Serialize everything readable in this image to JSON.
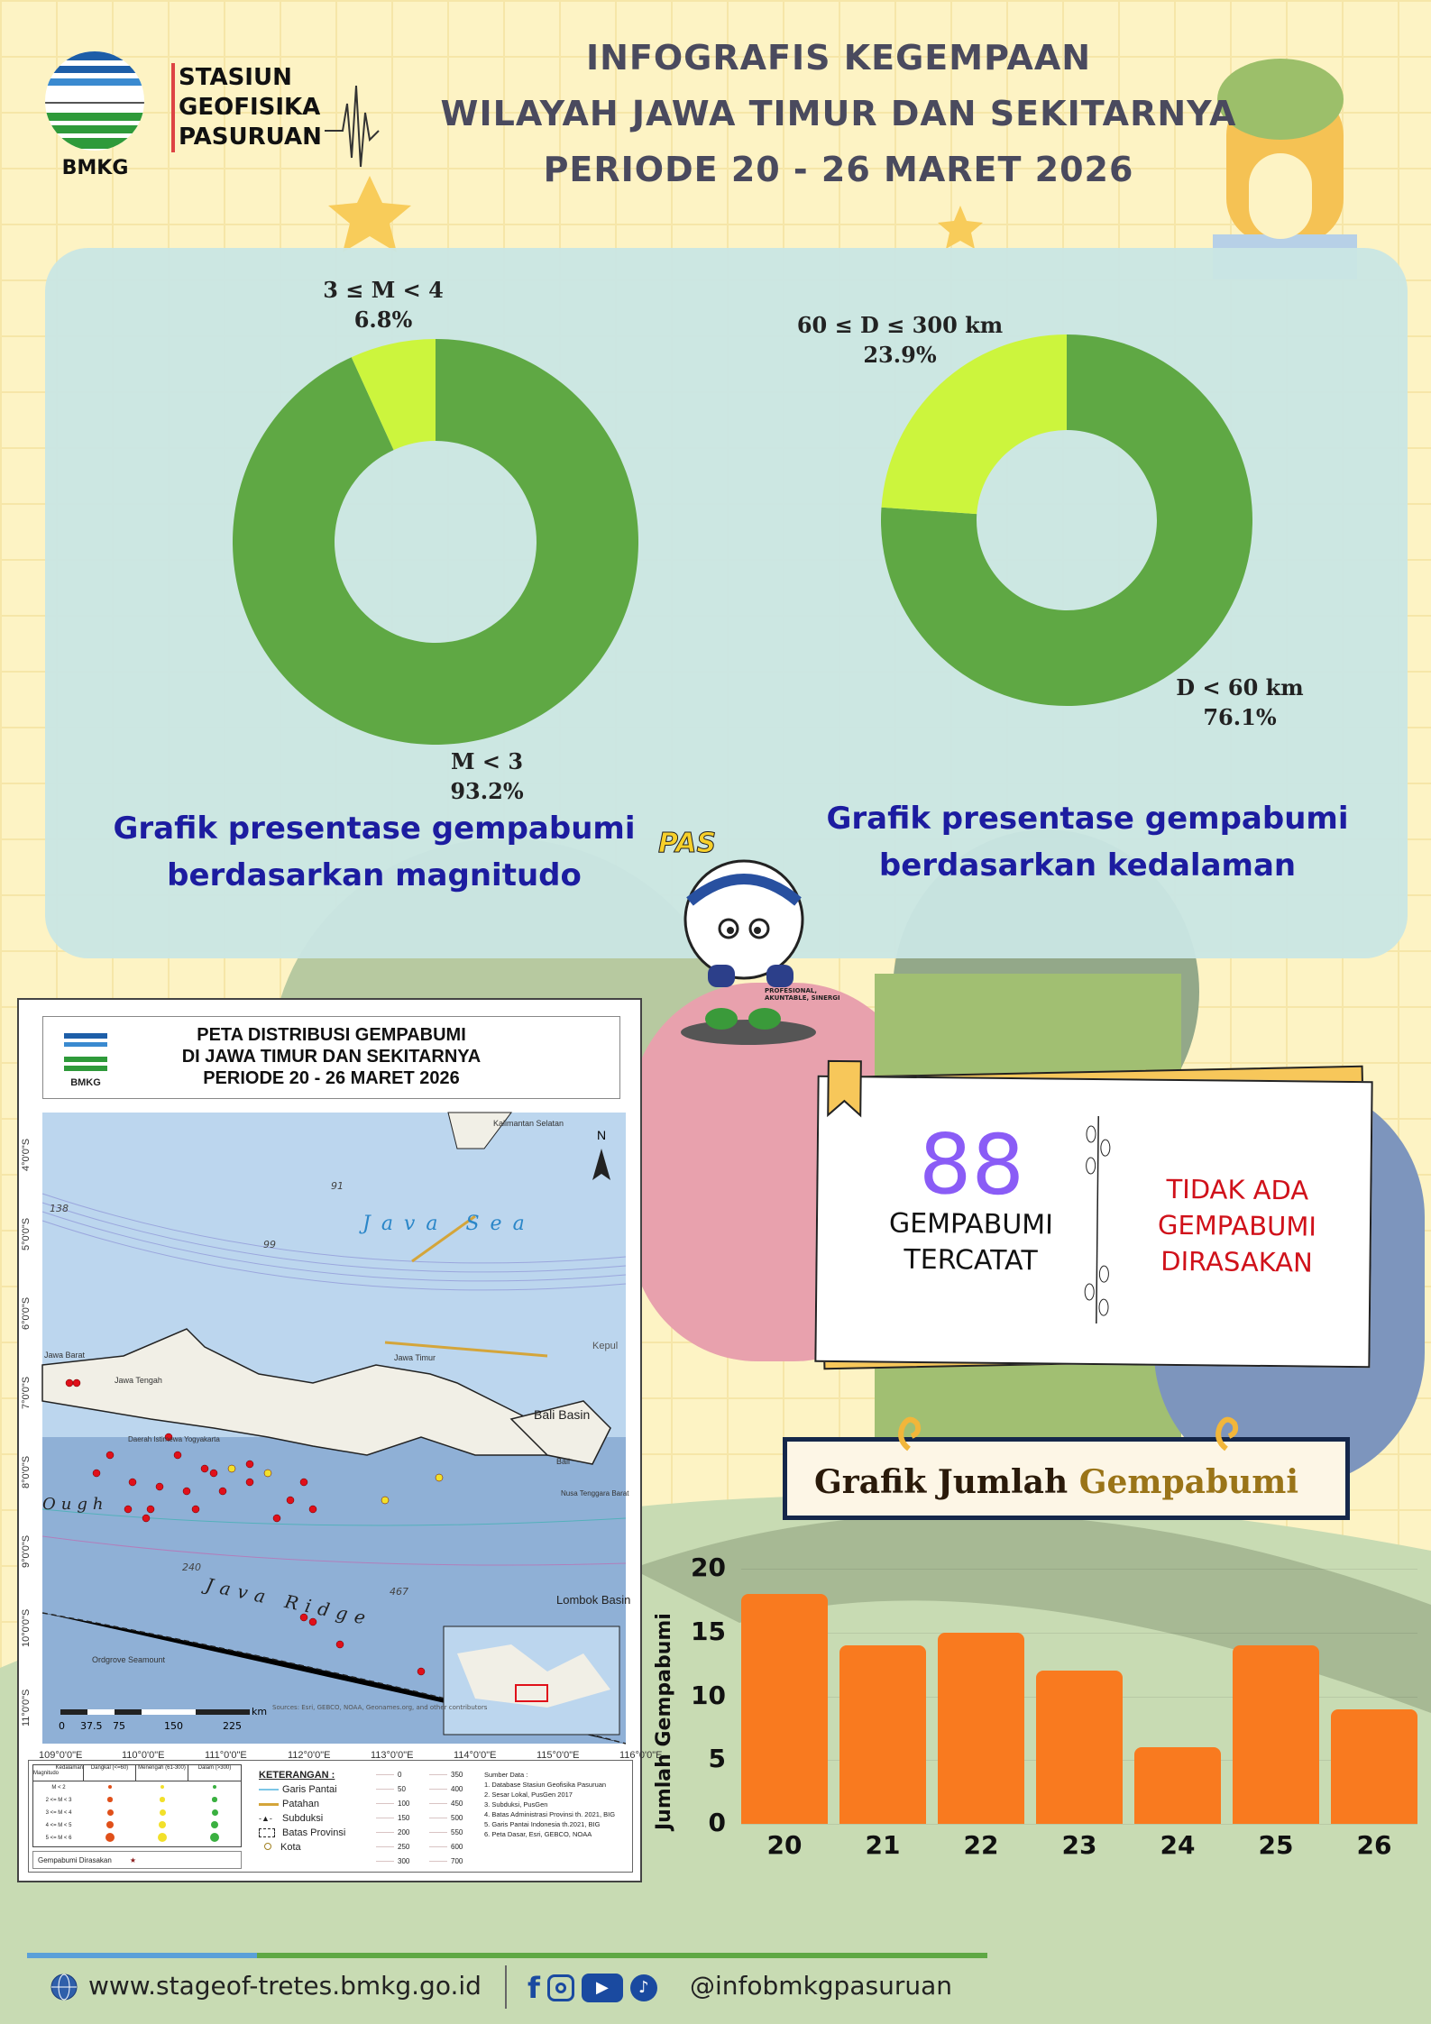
{
  "brand": {
    "logo_text": "BMKG",
    "station_lines": [
      "STASIUN",
      "GEOFISIKA",
      "PASURUAN"
    ]
  },
  "header": {
    "title_lines": [
      "INFOGRAFIS KEGEMPAAN",
      "WILAYAH JAWA TIMUR DAN SEKITARNYA",
      "PERIODE 20 - 26 MARET 2026"
    ]
  },
  "colors": {
    "major": "#5fa844",
    "minor": "#ccf53d",
    "bars": "#f97a1f",
    "caption": "#1c1ca0",
    "count": "#8a5cf6",
    "felt": "#d0111a"
  },
  "chart_data": [
    {
      "type": "pie",
      "title": "Grafik presentase gempabumi berdasarkan magnitudo",
      "slices": [
        {
          "label": "M < 3",
          "value": 93.2,
          "display": "93.2%"
        },
        {
          "label": "3 ≤ M < 4",
          "value": 6.8,
          "display": "6.8%"
        }
      ]
    },
    {
      "type": "pie",
      "title": "Grafik presentase gempabumi berdasarkan kedalaman",
      "slices": [
        {
          "label": "D < 60 km",
          "value": 76.1,
          "display": "76.1%"
        },
        {
          "label": "60 ≤ D ≤ 300 km",
          "value": 23.9,
          "display": "23.9%"
        }
      ]
    },
    {
      "type": "bar",
      "title": "Grafik Jumlah Gempabumi",
      "ylabel": "Jumlah Gempabumi",
      "xlabel": "",
      "categories": [
        "20",
        "21",
        "22",
        "23",
        "24",
        "25",
        "26"
      ],
      "values": [
        18,
        14,
        15,
        12,
        6,
        14,
        9
      ],
      "ylim": [
        0,
        20
      ],
      "yticks": [
        "0",
        "5",
        "10",
        "15",
        "20"
      ],
      "grid": true
    }
  ],
  "captions": {
    "magnitude": [
      "Grafik presentase gempabumi",
      "berdasarkan magnitudo"
    ],
    "depth": [
      "Grafik presentase gempabumi",
      "berdasarkan kedalaman"
    ]
  },
  "mascot": {
    "name": "PAS",
    "tagline": "PROFESIONAL, AKUNTABLE, SINERGI"
  },
  "stats": {
    "count": "88",
    "count_label": [
      "GEMPABUMI",
      "TERCATAT"
    ],
    "felt_lines": [
      "TIDAK ADA",
      "GEMPABUMI",
      "DIRASAKAN"
    ]
  },
  "bar_title": {
    "part1": "Grafik Jumlah",
    "part2": "Gempabumi"
  },
  "map": {
    "title_lines": [
      "PETA DISTRIBUSI GEMPABUMI",
      "DI JAWA TIMUR DAN SEKITARNYA",
      "PERIODE 20 - 26 MARET 2026"
    ],
    "lat_ticks": [
      "4°0'0\"S",
      "5°0'0\"S",
      "6°0'0\"S",
      "7°0'0\"S",
      "8°0'0\"S",
      "9°0'0\"S",
      "10°0'0\"S",
      "11°0'0\"S"
    ],
    "lon_ticks": [
      "109°0'0\"E",
      "110°0'0\"E",
      "111°0'0\"E",
      "112°0'0\"E",
      "113°0'0\"E",
      "114°0'0\"E",
      "115°0'0\"E",
      "116°0'0\"E"
    ],
    "place_labels": [
      "Java Sea",
      "Kalimantan Selatan",
      "Jawa Barat",
      "Jawa Tengah",
      "Daerah Istimewa Yogyakarta",
      "Jawa Timur",
      "Bali Basin",
      "Bali",
      "Nusa Tenggara Barat",
      "Kepul",
      "Java Ridge",
      "Lombok Basin",
      "Ough",
      "Ordgrove Seamount"
    ],
    "contours": [
      "138",
      "99",
      "91",
      "240",
      "467"
    ],
    "scale": [
      "0",
      "37.5",
      "75",
      "150",
      "225",
      "km"
    ],
    "north": "N",
    "credits": "Sources: Esri, GEBCO, NOAA, Geonames.org, and other contributors",
    "legend": {
      "table_header": [
        "Kedalaman",
        "Magnitudo",
        "Dangkal (<=60)",
        "Menengah (61-300)",
        "Dalam (>300)"
      ],
      "mag_rows": [
        "M < 2",
        "2 <= M < 3",
        "3 <= M < 4",
        "4 <= M < 5",
        "5 <= M < 6"
      ],
      "felt": "Gempabumi Dirasakan",
      "keterangan_title": "KETERANGAN :",
      "keterangan": [
        "Garis Pantai",
        "Patahan",
        "Subduksi",
        "Batas Provinsi",
        "Kota"
      ],
      "depth_scale": [
        "0",
        "50",
        "100",
        "150",
        "200",
        "250",
        "300",
        "350",
        "400",
        "450",
        "500",
        "550",
        "600",
        "700"
      ],
      "sources_title": "Sumber Data :",
      "sources": [
        "1. Database Stasiun Geofisika Pasuruan",
        "2. Sesar Lokal, PusGen 2017",
        "3. Subduksi, PusGen",
        "4. Batas Administrasi Provinsi th. 2021, BIG",
        "5. Garis Pantai Indonesia th.2021, BIG",
        "6. Peta Dasar, Esri, GEBCO, NOAA"
      ]
    }
  },
  "footer": {
    "website": "www.stageof-tretes.bmkg.go.id",
    "social_handle": "@infobmkgpasuruan",
    "social_icons": [
      "facebook-icon",
      "instagram-icon",
      "youtube-icon",
      "tiktok-icon"
    ]
  }
}
